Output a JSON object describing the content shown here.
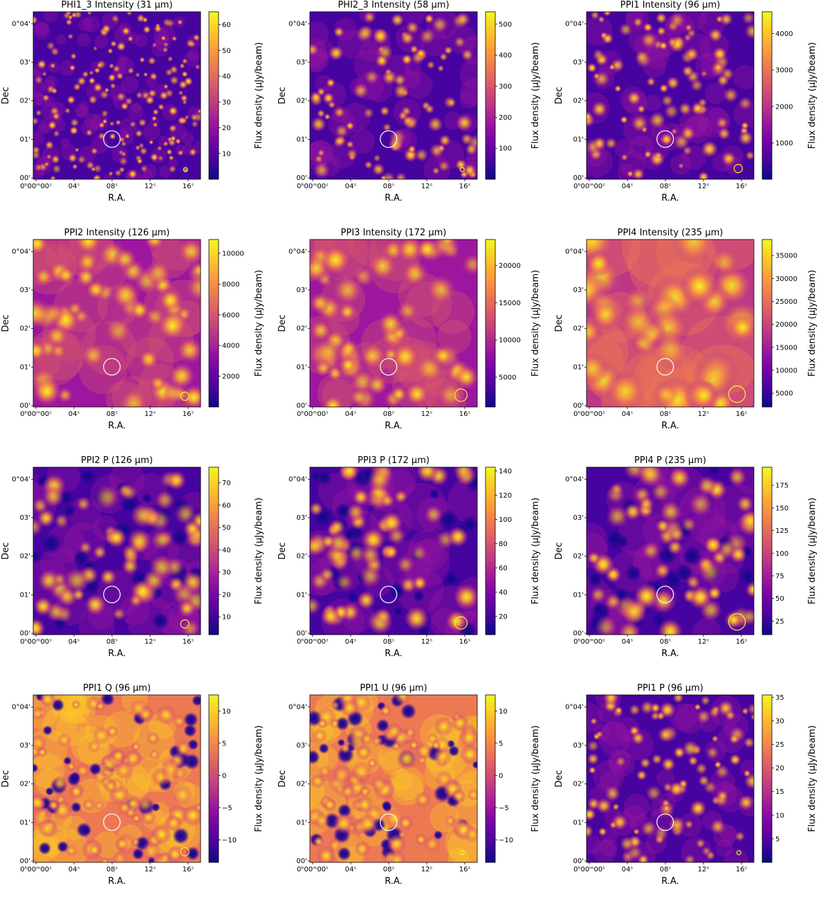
{
  "chart_data": [
    {
      "type": "heatmap",
      "title": "PHI1_3 Intensity (31 μm)",
      "xlabel": "R.A.",
      "ylabel": "Dec",
      "colorbar_label": "Flux density (μJy/beam)",
      "colorbar_ticks": [
        10,
        20,
        30,
        40,
        50,
        60
      ],
      "colorbar_range": [
        0,
        65
      ],
      "colormap": "plasma",
      "variant": "sharp",
      "beam_size": "small"
    },
    {
      "type": "heatmap",
      "title": "PHI2_3 Intensity (58 μm)",
      "xlabel": "R.A.",
      "ylabel": "Dec",
      "colorbar_label": "Flux density (μJy/beam)",
      "colorbar_ticks": [
        100,
        200,
        300,
        400,
        500
      ],
      "colorbar_range": [
        0,
        540
      ],
      "colormap": "plasma",
      "variant": "medium",
      "beam_size": "small"
    },
    {
      "type": "heatmap",
      "title": "PPI1 Intensity (96 μm)",
      "xlabel": "R.A.",
      "ylabel": "Dec",
      "colorbar_label": "Flux density (μJy/beam)",
      "colorbar_ticks": [
        1000,
        2000,
        3000,
        4000
      ],
      "colorbar_range": [
        0,
        4600
      ],
      "colormap": "plasma",
      "variant": "medium",
      "beam_size": "medium"
    },
    {
      "type": "heatmap",
      "title": "PPI2 Intensity (126 μm)",
      "xlabel": "R.A.",
      "ylabel": "Dec",
      "colorbar_label": "Flux density (μJy/beam)",
      "colorbar_ticks": [
        2000,
        4000,
        6000,
        8000,
        10000
      ],
      "colorbar_range": [
        0,
        10900
      ],
      "colormap": "plasma",
      "variant": "smooth",
      "beam_size": "medium"
    },
    {
      "type": "heatmap",
      "title": "PPI3 Intensity (172 μm)",
      "xlabel": "R.A.",
      "ylabel": "Dec",
      "colorbar_label": "Flux density (μJy/beam)",
      "colorbar_ticks": [
        5000,
        10000,
        15000,
        20000
      ],
      "colorbar_range": [
        1000,
        23500
      ],
      "colormap": "plasma",
      "variant": "smooth",
      "beam_size": "large"
    },
    {
      "type": "heatmap",
      "title": "PPI4 Intensity (235 μm)",
      "xlabel": "R.A.",
      "ylabel": "Dec",
      "colorbar_label": "Flux density (μJy/beam)",
      "colorbar_ticks": [
        5000,
        10000,
        15000,
        20000,
        25000,
        30000,
        35000
      ],
      "colorbar_range": [
        2000,
        38500
      ],
      "colormap": "plasma",
      "variant": "verysmooth",
      "beam_size": "xlarge"
    },
    {
      "type": "heatmap",
      "title": "PPI2 P (126 μm)",
      "xlabel": "R.A.",
      "ylabel": "Dec",
      "colorbar_label": "Flux density (μJy/beam)",
      "colorbar_ticks": [
        10,
        20,
        30,
        40,
        50,
        60,
        70
      ],
      "colorbar_range": [
        2,
        77
      ],
      "colormap": "plasma",
      "variant": "pol",
      "beam_size": "medium"
    },
    {
      "type": "heatmap",
      "title": "PPI3 P (172 μm)",
      "xlabel": "R.A.",
      "ylabel": "Dec",
      "colorbar_label": "Flux density (μJy/beam)",
      "colorbar_ticks": [
        20,
        40,
        60,
        80,
        100,
        120,
        140
      ],
      "colorbar_range": [
        5,
        143
      ],
      "colormap": "plasma",
      "variant": "pol",
      "beam_size": "large"
    },
    {
      "type": "heatmap",
      "title": "PPI4 P (235 μm)",
      "xlabel": "R.A.",
      "ylabel": "Dec",
      "colorbar_label": "Flux density (μJy/beam)",
      "colorbar_ticks": [
        25,
        50,
        75,
        100,
        125,
        150,
        175
      ],
      "colorbar_range": [
        10,
        195
      ],
      "colormap": "plasma",
      "variant": "pol",
      "beam_size": "xlarge"
    },
    {
      "type": "heatmap",
      "title": "PPI1 Q (96 μm)",
      "xlabel": "R.A.",
      "ylabel": "Dec",
      "colorbar_label": "Flux density (μJy/beam)",
      "colorbar_ticks": [
        -10,
        -5,
        0,
        5,
        10
      ],
      "colorbar_range": [
        -13.5,
        12.5
      ],
      "colormap": "plasma",
      "variant": "signed",
      "beam_size": "medium"
    },
    {
      "type": "heatmap",
      "title": "PPI1 U (96 μm)",
      "xlabel": "R.A.",
      "ylabel": "Dec",
      "colorbar_label": "Flux density (μJy/beam)",
      "colorbar_ticks": [
        -10,
        -5,
        0,
        5,
        10
      ],
      "colorbar_range": [
        -13.5,
        12.5
      ],
      "colormap": "plasma",
      "variant": "signed",
      "beam_size": "small"
    },
    {
      "type": "heatmap",
      "title": "PPI1 P (96 μm)",
      "xlabel": "R.A.",
      "ylabel": "Dec",
      "colorbar_label": "Flux density (μJy/beam)",
      "colorbar_ticks": [
        5,
        10,
        15,
        20,
        25,
        30,
        35
      ],
      "colorbar_range": [
        0,
        35.5
      ],
      "colormap": "plasma",
      "variant": "medium",
      "beam_size": "small"
    }
  ],
  "axes": {
    "x_ticks": [
      "0ʰ00ᵐ00ˢ",
      "04ˢ",
      "08ˢ",
      "12ˢ",
      "16ˢ"
    ],
    "y_ticks": [
      "00'",
      "01'",
      "02'",
      "03'",
      "0°04'"
    ]
  },
  "colors": {
    "marker_circle": "#ffffff",
    "beam_circle": "#f0f921",
    "cmap_low": "#0d0887",
    "cmap_high": "#f0f921"
  }
}
